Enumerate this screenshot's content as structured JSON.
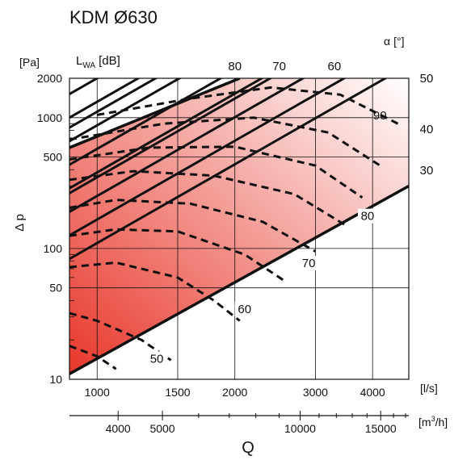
{
  "chart_data": {
    "type": "line",
    "title": "KDM Ø630",
    "title_color": "#e8362a",
    "x_axis": {
      "name": "Q",
      "unit_primary": "[l/s]",
      "unit_secondary": "[m3/h]",
      "unit_secondary_base": "[m",
      "unit_secondary_sup": "3",
      "unit_secondary_end": "/h]",
      "scale": "log",
      "range_ls": [
        870,
        4800
      ],
      "ticks_ls": [
        1000,
        1500,
        2000,
        3000,
        4000
      ],
      "tick_labels_ls": [
        "1000",
        "1500",
        "2000",
        "3000",
        "4000"
      ],
      "ticks_m3h": [
        4000,
        5000,
        10000,
        15000
      ],
      "tick_labels_m3h": [
        "4000",
        "5000",
        "10000",
        "15000"
      ],
      "minor_ticks_m3h": [
        6000,
        7000,
        8000,
        9000,
        11000,
        12000,
        13000,
        14000,
        16000,
        17000
      ]
    },
    "y_axis": {
      "name": "Δ p",
      "unit": "[Pa]",
      "scale": "log",
      "range": [
        10,
        2000
      ],
      "ticks": [
        10,
        50,
        100,
        500,
        1000,
        2000
      ],
      "tick_labels": [
        "10",
        "50",
        "100",
        "500",
        "1000",
        "2000"
      ],
      "minor_ticks": [
        20,
        30,
        40,
        60,
        70,
        80,
        90,
        200,
        300,
        400,
        600,
        700,
        800,
        900
      ]
    },
    "grid": true,
    "region_gradient": [
      "#e8362a",
      "#ffffff"
    ],
    "envelope": {
      "upper": [
        [
          870,
          590
        ],
        [
          2050,
          2000
        ]
      ],
      "lower": [
        [
          870,
          11
        ],
        [
          4800,
          300
        ]
      ]
    },
    "lwa_label": "L",
    "lwa_sub": "WA",
    "lwa_unit": "[dB]",
    "lwa_lines": [
      {
        "label": "50",
        "x": 1000,
        "y": 110
      },
      {
        "label": "60",
        "x": 1000,
        "y": 350
      },
      {
        "label": "70",
        "x": 1000,
        "y": 1110
      },
      {
        "label": "80",
        "x": 1000,
        "y": 3520
      }
    ],
    "lwa_line_labels": [
      {
        "text": "50",
        "at": [
          1350,
          13.4
        ]
      },
      {
        "text": "60",
        "at": [
          2100,
          32
        ]
      },
      {
        "text": "70",
        "at": [
          2900,
          72
        ]
      },
      {
        "text": "80",
        "at": [
          3900,
          165
        ]
      },
      {
        "text": "80",
        "at": [
          2000,
          2800
        ]
      },
      {
        "text": "70",
        "at": [
          2500,
          2800
        ]
      },
      {
        "text": "60",
        "at": [
          3300,
          2800
        ]
      }
    ],
    "alpha_unit_symbol": "α",
    "alpha_unit": "[°]",
    "alpha_curves": [
      {
        "label": "90",
        "points": [
          [
            870,
            18
          ],
          [
            1000,
            15
          ],
          [
            1100,
            12
          ]
        ]
      },
      {
        "label": "80",
        "points": [
          [
            870,
            32
          ],
          [
            1000,
            28
          ],
          [
            1250,
            20
          ],
          [
            1450,
            14
          ]
        ]
      },
      {
        "label": "70",
        "points": [
          [
            870,
            72
          ],
          [
            1100,
            78
          ],
          [
            1500,
            60
          ],
          [
            1800,
            40
          ],
          [
            2050,
            28
          ]
        ]
      },
      {
        "label": "60",
        "points": [
          [
            870,
            125
          ],
          [
            1100,
            140
          ],
          [
            1500,
            135
          ],
          [
            2100,
            90
          ],
          [
            2600,
            55
          ]
        ]
      },
      {
        "label": "50",
        "points": [
          [
            870,
            205
          ],
          [
            1100,
            235
          ],
          [
            1600,
            220
          ],
          [
            2300,
            160
          ],
          [
            3000,
            95
          ]
        ]
      },
      {
        "label": "40",
        "points": [
          [
            870,
            335
          ],
          [
            1200,
            390
          ],
          [
            1800,
            360
          ],
          [
            2700,
            260
          ],
          [
            3500,
            150
          ]
        ]
      },
      {
        "label": "30",
        "points": [
          [
            870,
            480
          ],
          [
            1300,
            590
          ],
          [
            2000,
            600
          ],
          [
            3000,
            430
          ],
          [
            3800,
            245
          ]
        ]
      },
      {
        "label": "",
        "points": [
          [
            870,
            680
          ],
          [
            1400,
            900
          ],
          [
            2200,
            1000
          ],
          [
            3200,
            770
          ],
          [
            4200,
            420
          ]
        ]
      },
      {
        "label": "",
        "points": [
          [
            1000,
            1050
          ],
          [
            1600,
            1400
          ],
          [
            2400,
            1700
          ],
          [
            3400,
            1500
          ],
          [
            4600,
            880
          ]
        ]
      }
    ],
    "alpha_labels": [
      {
        "text": "50",
        "at": [
          5400,
          2000
        ]
      },
      {
        "text": "90",
        "at": [
          4150,
          1040
        ]
      },
      {
        "text": "40",
        "at": [
          5400,
          820
        ]
      },
      {
        "text": "30",
        "at": [
          5400,
          395
        ]
      }
    ]
  }
}
